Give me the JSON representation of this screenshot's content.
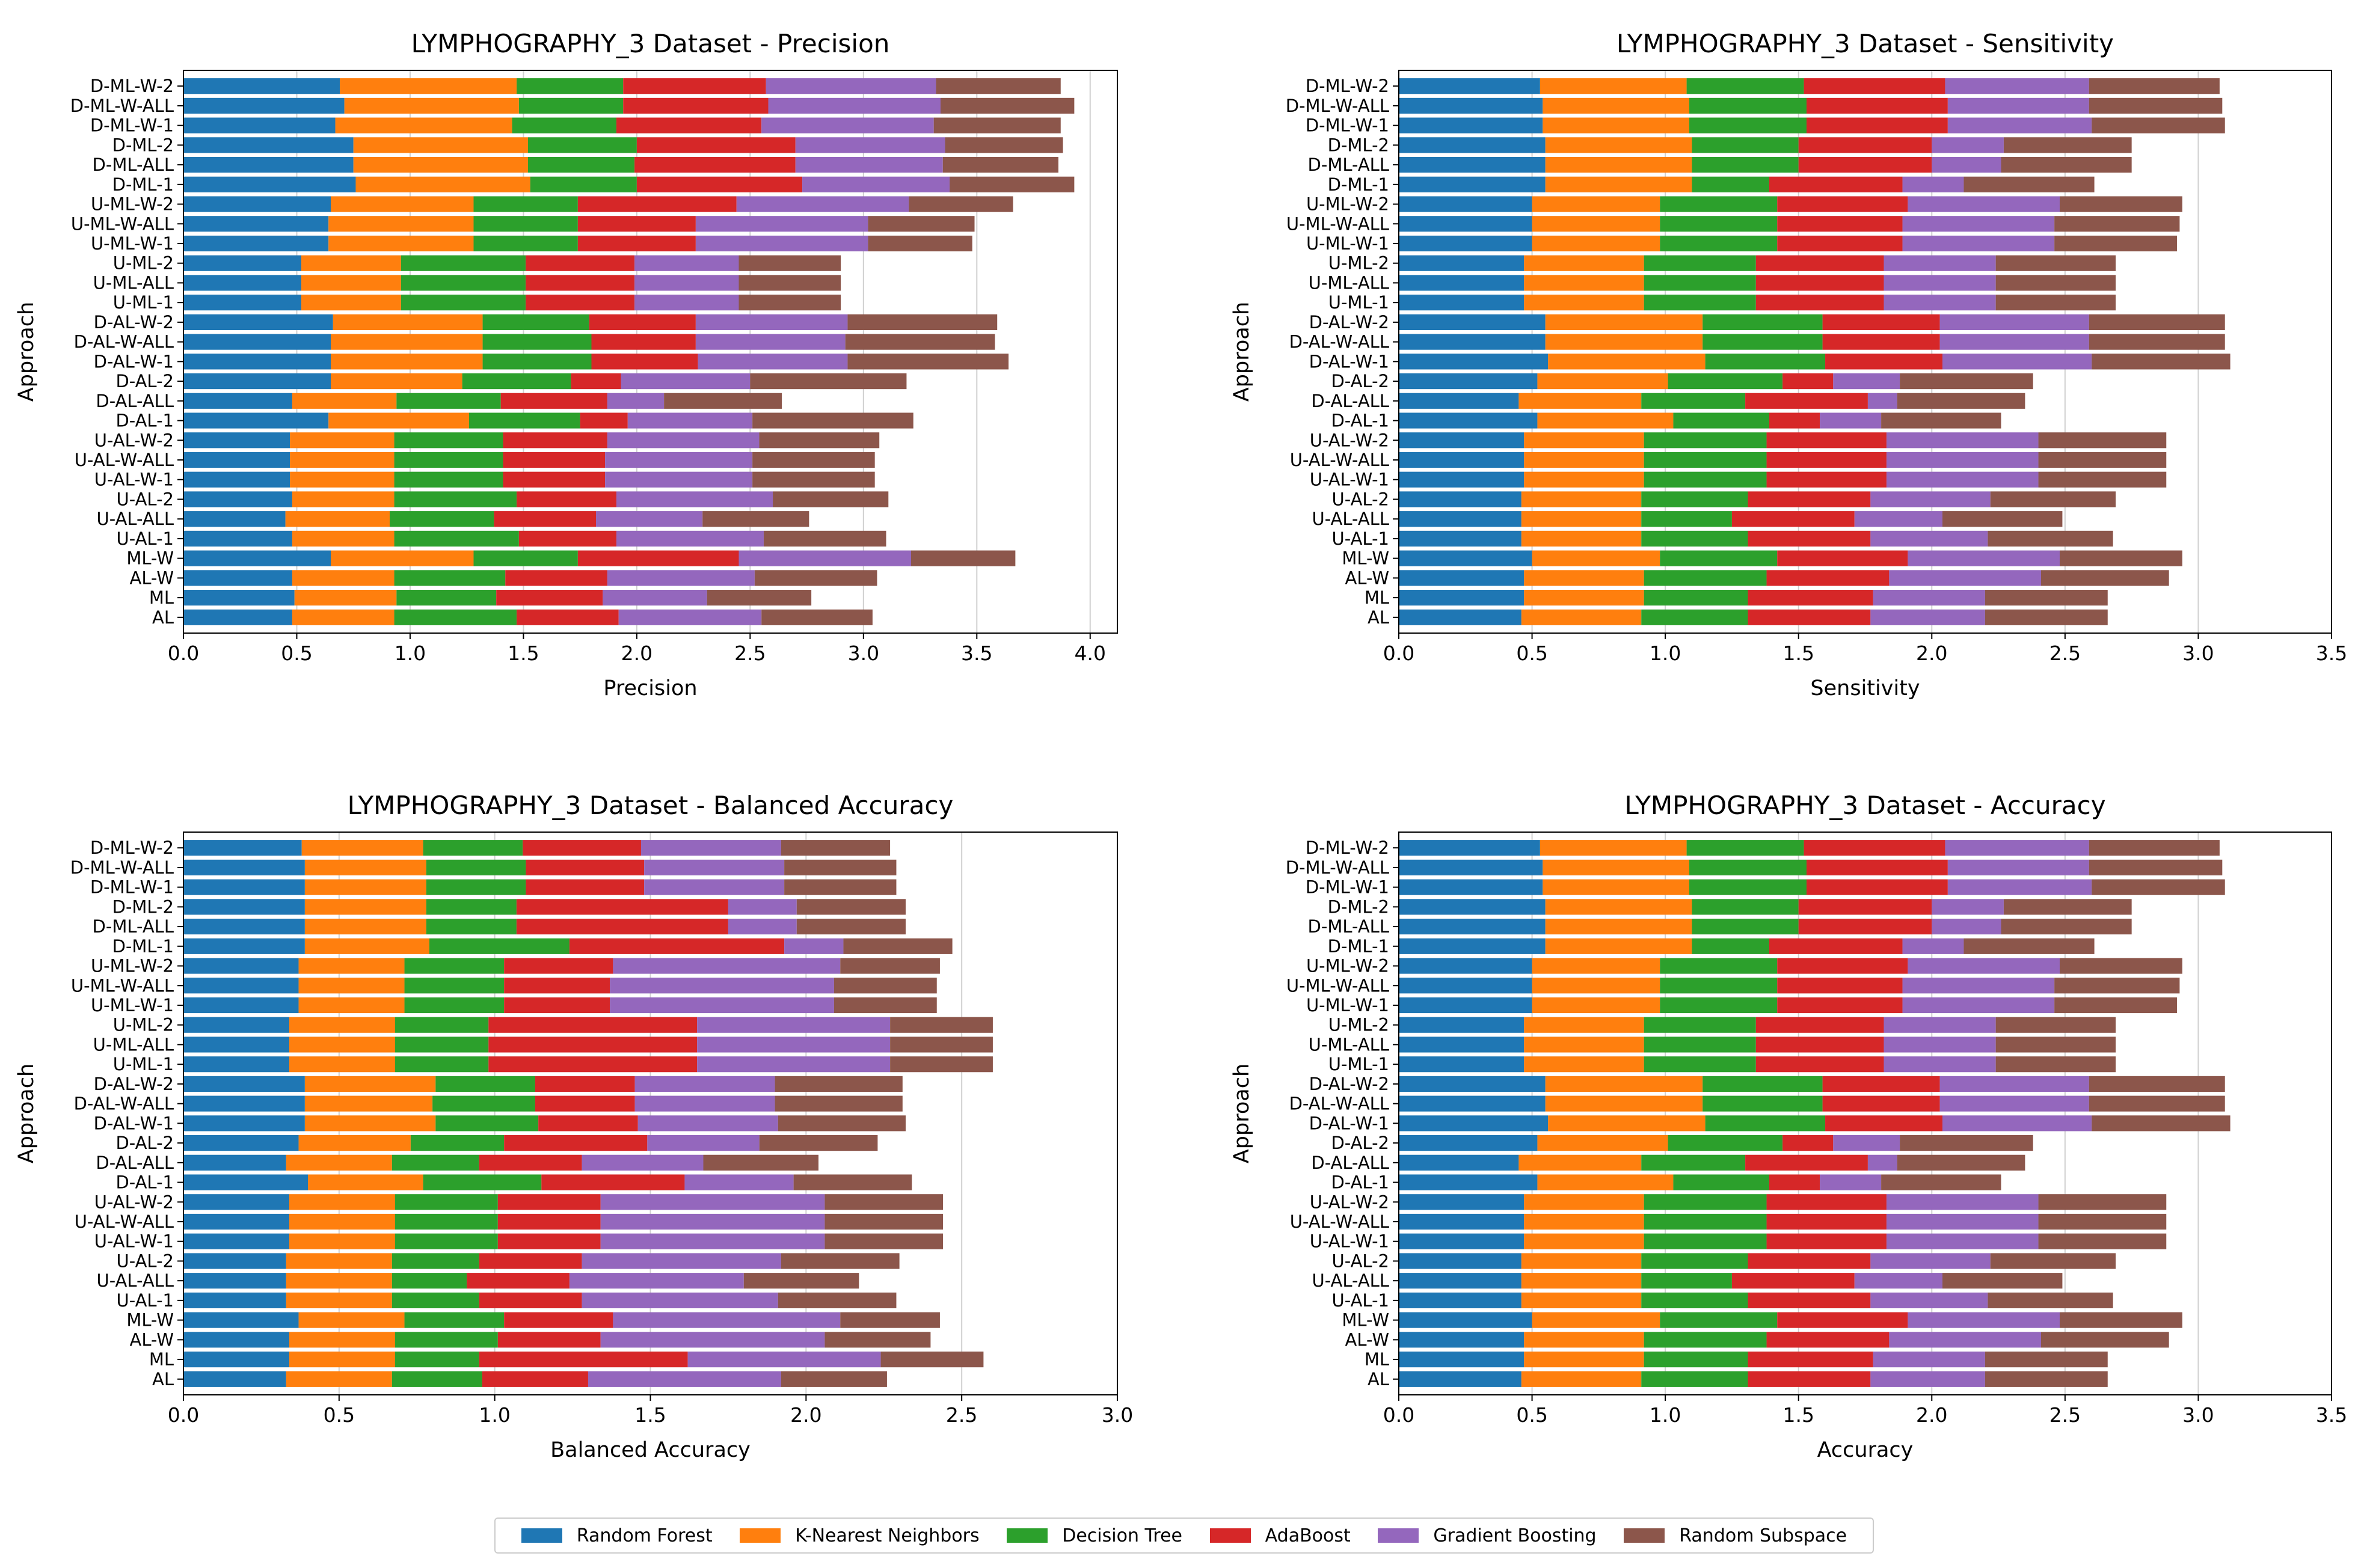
{
  "legend": {
    "items": [
      {
        "label": "Random Forest",
        "color": "#1f77b4"
      },
      {
        "label": "K-Nearest Neighbors",
        "color": "#ff7f0e"
      },
      {
        "label": "Decision Tree",
        "color": "#2ca02c"
      },
      {
        "label": "AdaBoost",
        "color": "#d62728"
      },
      {
        "label": "Gradient Boosting",
        "color": "#9467bd"
      },
      {
        "label": "Random Subspace",
        "color": "#8c564b"
      }
    ]
  },
  "chart_data": [
    {
      "type": "bar",
      "orientation": "horizontal-stacked",
      "title": "LYMPHOGRAPHY_3 Dataset - Precision",
      "xlabel": "Precision",
      "ylabel": "Approach",
      "xlim": [
        0,
        4.12
      ],
      "xticks": [
        0.0,
        0.5,
        1.0,
        1.5,
        2.0,
        2.5,
        3.0,
        3.5,
        4.0
      ],
      "xtick_labels": [
        "0.0",
        "0.5",
        "1.0",
        "1.5",
        "2.0",
        "2.5",
        "3.0",
        "3.5",
        "4.0"
      ],
      "grid": "vertical",
      "categories": [
        "D-ML-W-2",
        "D-ML-W-ALL",
        "D-ML-W-1",
        "D-ML-2",
        "D-ML-ALL",
        "D-ML-1",
        "U-ML-W-2",
        "U-ML-W-ALL",
        "U-ML-W-1",
        "U-ML-2",
        "U-ML-ALL",
        "U-ML-1",
        "D-AL-W-2",
        "D-AL-W-ALL",
        "D-AL-W-1",
        "D-AL-2",
        "D-AL-ALL",
        "D-AL-1",
        "U-AL-W-2",
        "U-AL-W-ALL",
        "U-AL-W-1",
        "U-AL-2",
        "U-AL-ALL",
        "U-AL-1",
        "ML-W",
        "AL-W",
        "ML",
        "AL"
      ],
      "series": [
        {
          "name": "Random Forest",
          "values": [
            0.69,
            0.71,
            0.67,
            0.75,
            0.75,
            0.76,
            0.65,
            0.64,
            0.64,
            0.52,
            0.52,
            0.52,
            0.66,
            0.65,
            0.65,
            0.65,
            0.48,
            0.64,
            0.47,
            0.47,
            0.47,
            0.48,
            0.45,
            0.48,
            0.65,
            0.48,
            0.49,
            0.48
          ]
        },
        {
          "name": "K-Nearest Neighbors",
          "values": [
            0.78,
            0.77,
            0.78,
            0.77,
            0.77,
            0.77,
            0.63,
            0.64,
            0.64,
            0.44,
            0.44,
            0.44,
            0.66,
            0.67,
            0.67,
            0.58,
            0.46,
            0.62,
            0.46,
            0.46,
            0.46,
            0.45,
            0.46,
            0.45,
            0.63,
            0.45,
            0.45,
            0.45
          ]
        },
        {
          "name": "Decision Tree",
          "values": [
            0.47,
            0.46,
            0.46,
            0.48,
            0.47,
            0.47,
            0.46,
            0.46,
            0.46,
            0.55,
            0.55,
            0.55,
            0.47,
            0.48,
            0.48,
            0.48,
            0.46,
            0.49,
            0.48,
            0.48,
            0.48,
            0.54,
            0.46,
            0.55,
            0.46,
            0.49,
            0.44,
            0.54
          ]
        },
        {
          "name": "AdaBoost",
          "values": [
            0.63,
            0.64,
            0.64,
            0.7,
            0.71,
            0.73,
            0.7,
            0.52,
            0.52,
            0.48,
            0.48,
            0.48,
            0.47,
            0.46,
            0.47,
            0.22,
            0.47,
            0.21,
            0.46,
            0.45,
            0.45,
            0.44,
            0.45,
            0.43,
            0.71,
            0.45,
            0.47,
            0.45
          ]
        },
        {
          "name": "Gradient Boosting",
          "values": [
            0.75,
            0.76,
            0.76,
            0.66,
            0.65,
            0.65,
            0.76,
            0.76,
            0.76,
            0.46,
            0.46,
            0.46,
            0.67,
            0.66,
            0.66,
            0.57,
            0.25,
            0.55,
            0.67,
            0.65,
            0.65,
            0.69,
            0.47,
            0.65,
            0.76,
            0.65,
            0.46,
            0.63
          ]
        },
        {
          "name": "Random Subspace",
          "values": [
            0.55,
            0.59,
            0.56,
            0.52,
            0.51,
            0.55,
            0.46,
            0.47,
            0.46,
            0.45,
            0.45,
            0.45,
            0.66,
            0.66,
            0.71,
            0.69,
            0.52,
            0.71,
            0.53,
            0.54,
            0.54,
            0.51,
            0.47,
            0.54,
            0.46,
            0.54,
            0.46,
            0.49
          ]
        }
      ]
    },
    {
      "type": "bar",
      "orientation": "horizontal-stacked",
      "title": "LYMPHOGRAPHY_3 Dataset - Sensitivity",
      "xlabel": "Sensitivity",
      "ylabel": "Approach",
      "xlim": [
        0,
        3.5
      ],
      "xticks": [
        0.0,
        0.5,
        1.0,
        1.5,
        2.0,
        2.5,
        3.0,
        3.5
      ],
      "xtick_labels": [
        "0.0",
        "0.5",
        "1.0",
        "1.5",
        "2.0",
        "2.5",
        "3.0",
        "3.5"
      ],
      "grid": "vertical",
      "categories": [
        "D-ML-W-2",
        "D-ML-W-ALL",
        "D-ML-W-1",
        "D-ML-2",
        "D-ML-ALL",
        "D-ML-1",
        "U-ML-W-2",
        "U-ML-W-ALL",
        "U-ML-W-1",
        "U-ML-2",
        "U-ML-ALL",
        "U-ML-1",
        "D-AL-W-2",
        "D-AL-W-ALL",
        "D-AL-W-1",
        "D-AL-2",
        "D-AL-ALL",
        "D-AL-1",
        "U-AL-W-2",
        "U-AL-W-ALL",
        "U-AL-W-1",
        "U-AL-2",
        "U-AL-ALL",
        "U-AL-1",
        "ML-W",
        "AL-W",
        "ML",
        "AL"
      ],
      "series": [
        {
          "name": "Random Forest",
          "values": [
            0.53,
            0.54,
            0.54,
            0.55,
            0.55,
            0.55,
            0.5,
            0.5,
            0.5,
            0.47,
            0.47,
            0.47,
            0.55,
            0.55,
            0.56,
            0.52,
            0.45,
            0.52,
            0.47,
            0.47,
            0.47,
            0.46,
            0.46,
            0.46,
            0.5,
            0.47,
            0.47,
            0.46
          ]
        },
        {
          "name": "K-Nearest Neighbors",
          "values": [
            0.55,
            0.55,
            0.55,
            0.55,
            0.55,
            0.55,
            0.48,
            0.48,
            0.48,
            0.45,
            0.45,
            0.45,
            0.59,
            0.59,
            0.59,
            0.49,
            0.46,
            0.51,
            0.45,
            0.45,
            0.45,
            0.45,
            0.45,
            0.45,
            0.48,
            0.45,
            0.45,
            0.45
          ]
        },
        {
          "name": "Decision Tree",
          "values": [
            0.44,
            0.44,
            0.44,
            0.4,
            0.4,
            0.29,
            0.44,
            0.44,
            0.44,
            0.42,
            0.42,
            0.42,
            0.45,
            0.45,
            0.45,
            0.43,
            0.39,
            0.36,
            0.46,
            0.46,
            0.46,
            0.4,
            0.34,
            0.4,
            0.44,
            0.46,
            0.39,
            0.4
          ]
        },
        {
          "name": "AdaBoost",
          "values": [
            0.53,
            0.53,
            0.53,
            0.5,
            0.5,
            0.5,
            0.49,
            0.47,
            0.47,
            0.48,
            0.48,
            0.48,
            0.44,
            0.44,
            0.44,
            0.19,
            0.46,
            0.19,
            0.45,
            0.45,
            0.45,
            0.46,
            0.46,
            0.46,
            0.49,
            0.46,
            0.47,
            0.46
          ]
        },
        {
          "name": "Gradient Boosting",
          "values": [
            0.54,
            0.53,
            0.54,
            0.27,
            0.26,
            0.23,
            0.57,
            0.57,
            0.57,
            0.42,
            0.42,
            0.42,
            0.56,
            0.56,
            0.56,
            0.25,
            0.11,
            0.23,
            0.57,
            0.57,
            0.57,
            0.45,
            0.33,
            0.44,
            0.57,
            0.57,
            0.42,
            0.43
          ]
        },
        {
          "name": "Random Subspace",
          "values": [
            0.49,
            0.5,
            0.5,
            0.48,
            0.49,
            0.49,
            0.46,
            0.47,
            0.46,
            0.45,
            0.45,
            0.45,
            0.51,
            0.51,
            0.52,
            0.5,
            0.48,
            0.45,
            0.48,
            0.48,
            0.48,
            0.47,
            0.45,
            0.47,
            0.46,
            0.48,
            0.46,
            0.46
          ]
        }
      ]
    },
    {
      "type": "bar",
      "orientation": "horizontal-stacked",
      "title": "LYMPHOGRAPHY_3 Dataset - Balanced Accuracy",
      "xlabel": "Balanced Accuracy",
      "ylabel": "Approach",
      "xlim": [
        0,
        3.0
      ],
      "xticks": [
        0.0,
        0.5,
        1.0,
        1.5,
        2.0,
        2.5,
        3.0
      ],
      "xtick_labels": [
        "0.0",
        "0.5",
        "1.0",
        "1.5",
        "2.0",
        "2.5",
        "3.0"
      ],
      "grid": "vertical",
      "categories": [
        "D-ML-W-2",
        "D-ML-W-ALL",
        "D-ML-W-1",
        "D-ML-2",
        "D-ML-ALL",
        "D-ML-1",
        "U-ML-W-2",
        "U-ML-W-ALL",
        "U-ML-W-1",
        "U-ML-2",
        "U-ML-ALL",
        "U-ML-1",
        "D-AL-W-2",
        "D-AL-W-ALL",
        "D-AL-W-1",
        "D-AL-2",
        "D-AL-ALL",
        "D-AL-1",
        "U-AL-W-2",
        "U-AL-W-ALL",
        "U-AL-W-1",
        "U-AL-2",
        "U-AL-ALL",
        "U-AL-1",
        "ML-W",
        "AL-W",
        "ML",
        "AL"
      ],
      "series": [
        {
          "name": "Random Forest",
          "values": [
            0.38,
            0.39,
            0.39,
            0.39,
            0.39,
            0.39,
            0.37,
            0.37,
            0.37,
            0.34,
            0.34,
            0.34,
            0.39,
            0.39,
            0.39,
            0.37,
            0.33,
            0.4,
            0.34,
            0.34,
            0.34,
            0.33,
            0.33,
            0.33,
            0.37,
            0.34,
            0.34,
            0.33
          ]
        },
        {
          "name": "K-Nearest Neighbors",
          "values": [
            0.39,
            0.39,
            0.39,
            0.39,
            0.39,
            0.4,
            0.34,
            0.34,
            0.34,
            0.34,
            0.34,
            0.34,
            0.42,
            0.41,
            0.42,
            0.36,
            0.34,
            0.37,
            0.34,
            0.34,
            0.34,
            0.34,
            0.34,
            0.34,
            0.34,
            0.34,
            0.34,
            0.34
          ]
        },
        {
          "name": "Decision Tree",
          "values": [
            0.32,
            0.32,
            0.32,
            0.29,
            0.29,
            0.45,
            0.32,
            0.32,
            0.32,
            0.3,
            0.3,
            0.3,
            0.32,
            0.33,
            0.33,
            0.3,
            0.28,
            0.38,
            0.33,
            0.33,
            0.33,
            0.28,
            0.24,
            0.28,
            0.32,
            0.33,
            0.27,
            0.29
          ]
        },
        {
          "name": "AdaBoost",
          "values": [
            0.38,
            0.38,
            0.38,
            0.68,
            0.68,
            0.69,
            0.35,
            0.34,
            0.34,
            0.67,
            0.67,
            0.67,
            0.32,
            0.32,
            0.32,
            0.46,
            0.33,
            0.46,
            0.33,
            0.33,
            0.33,
            0.33,
            0.33,
            0.33,
            0.35,
            0.33,
            0.67,
            0.34
          ]
        },
        {
          "name": "Gradient Boosting",
          "values": [
            0.45,
            0.45,
            0.45,
            0.22,
            0.22,
            0.19,
            0.73,
            0.72,
            0.72,
            0.62,
            0.62,
            0.62,
            0.45,
            0.45,
            0.45,
            0.36,
            0.39,
            0.35,
            0.72,
            0.72,
            0.72,
            0.64,
            0.56,
            0.63,
            0.73,
            0.72,
            0.62,
            0.62
          ]
        },
        {
          "name": "Random Subspace",
          "values": [
            0.35,
            0.36,
            0.36,
            0.35,
            0.35,
            0.35,
            0.32,
            0.33,
            0.33,
            0.33,
            0.33,
            0.33,
            0.41,
            0.41,
            0.41,
            0.38,
            0.37,
            0.38,
            0.38,
            0.38,
            0.38,
            0.38,
            0.37,
            0.38,
            0.32,
            0.34,
            0.33,
            0.34
          ]
        }
      ]
    },
    {
      "type": "bar",
      "orientation": "horizontal-stacked",
      "title": "LYMPHOGRAPHY_3 Dataset - Accuracy",
      "xlabel": "Accuracy",
      "ylabel": "Approach",
      "xlim": [
        0,
        3.5
      ],
      "xticks": [
        0.0,
        0.5,
        1.0,
        1.5,
        2.0,
        2.5,
        3.0,
        3.5
      ],
      "xtick_labels": [
        "0.0",
        "0.5",
        "1.0",
        "1.5",
        "2.0",
        "2.5",
        "3.0",
        "3.5"
      ],
      "grid": "vertical",
      "categories": [
        "D-ML-W-2",
        "D-ML-W-ALL",
        "D-ML-W-1",
        "D-ML-2",
        "D-ML-ALL",
        "D-ML-1",
        "U-ML-W-2",
        "U-ML-W-ALL",
        "U-ML-W-1",
        "U-ML-2",
        "U-ML-ALL",
        "U-ML-1",
        "D-AL-W-2",
        "D-AL-W-ALL",
        "D-AL-W-1",
        "D-AL-2",
        "D-AL-ALL",
        "D-AL-1",
        "U-AL-W-2",
        "U-AL-W-ALL",
        "U-AL-W-1",
        "U-AL-2",
        "U-AL-ALL",
        "U-AL-1",
        "ML-W",
        "AL-W",
        "ML",
        "AL"
      ],
      "series": [
        {
          "name": "Random Forest",
          "values": [
            0.53,
            0.54,
            0.54,
            0.55,
            0.55,
            0.55,
            0.5,
            0.5,
            0.5,
            0.47,
            0.47,
            0.47,
            0.55,
            0.55,
            0.56,
            0.52,
            0.45,
            0.52,
            0.47,
            0.47,
            0.47,
            0.46,
            0.46,
            0.46,
            0.5,
            0.47,
            0.47,
            0.46
          ]
        },
        {
          "name": "K-Nearest Neighbors",
          "values": [
            0.55,
            0.55,
            0.55,
            0.55,
            0.55,
            0.55,
            0.48,
            0.48,
            0.48,
            0.45,
            0.45,
            0.45,
            0.59,
            0.59,
            0.59,
            0.49,
            0.46,
            0.51,
            0.45,
            0.45,
            0.45,
            0.45,
            0.45,
            0.45,
            0.48,
            0.45,
            0.45,
            0.45
          ]
        },
        {
          "name": "Decision Tree",
          "values": [
            0.44,
            0.44,
            0.44,
            0.4,
            0.4,
            0.29,
            0.44,
            0.44,
            0.44,
            0.42,
            0.42,
            0.42,
            0.45,
            0.45,
            0.45,
            0.43,
            0.39,
            0.36,
            0.46,
            0.46,
            0.46,
            0.4,
            0.34,
            0.4,
            0.44,
            0.46,
            0.39,
            0.4
          ]
        },
        {
          "name": "AdaBoost",
          "values": [
            0.53,
            0.53,
            0.53,
            0.5,
            0.5,
            0.5,
            0.49,
            0.47,
            0.47,
            0.48,
            0.48,
            0.48,
            0.44,
            0.44,
            0.44,
            0.19,
            0.46,
            0.19,
            0.45,
            0.45,
            0.45,
            0.46,
            0.46,
            0.46,
            0.49,
            0.46,
            0.47,
            0.46
          ]
        },
        {
          "name": "Gradient Boosting",
          "values": [
            0.54,
            0.53,
            0.54,
            0.27,
            0.26,
            0.23,
            0.57,
            0.57,
            0.57,
            0.42,
            0.42,
            0.42,
            0.56,
            0.56,
            0.56,
            0.25,
            0.11,
            0.23,
            0.57,
            0.57,
            0.57,
            0.45,
            0.33,
            0.44,
            0.57,
            0.57,
            0.42,
            0.43
          ]
        },
        {
          "name": "Random Subspace",
          "values": [
            0.49,
            0.5,
            0.5,
            0.48,
            0.49,
            0.49,
            0.46,
            0.47,
            0.46,
            0.45,
            0.45,
            0.45,
            0.51,
            0.51,
            0.52,
            0.5,
            0.48,
            0.45,
            0.48,
            0.48,
            0.48,
            0.47,
            0.45,
            0.47,
            0.46,
            0.48,
            0.46,
            0.46
          ]
        }
      ]
    }
  ]
}
